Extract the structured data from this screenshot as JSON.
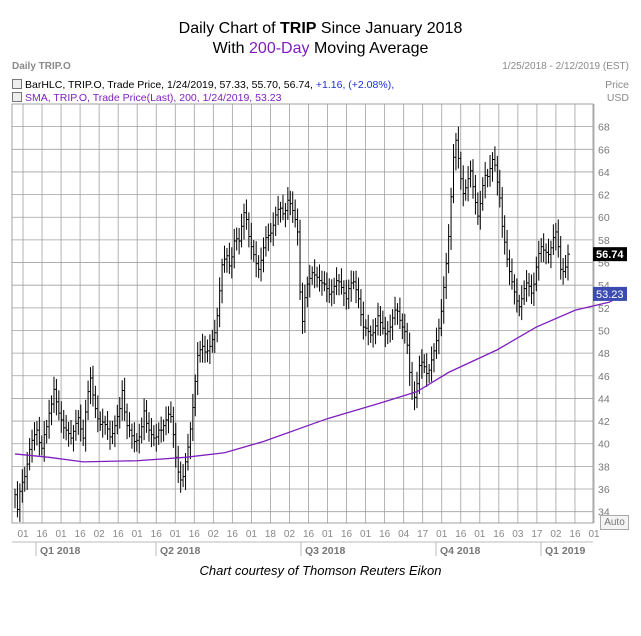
{
  "title": {
    "line1_pre": "Daily Chart of ",
    "line1_bold": "TRIP",
    "line1_post": " Since January 2018",
    "line2_pre": "With ",
    "line2_highlight": "200-Day",
    "line2_post": " Moving Average"
  },
  "header": {
    "left": "Daily TRIP.O",
    "right": "1/25/2018 - 2/12/2019 (EST)"
  },
  "legend": {
    "ohlc": {
      "label": "BarHLC, TRIP.O, Trade Price, 1/24/2019, 57.33, 55.70, 56.74,",
      "change": "+1.16, (+2.08%),"
    },
    "sma": {
      "label": "SMA, TRIP.O, Trade Price(Last), 200, 1/24/2019, 53.23"
    }
  },
  "price_header": {
    "line1": "Price",
    "line2": "USD"
  },
  "last_price_tag": "56.74",
  "sma_tag": "53.23",
  "auto_label": "Auto",
  "credit": "Chart courtesy of Thomson Reuters Eikon",
  "colors": {
    "grid": "#a0a0a0",
    "bars": "#000000",
    "sma": "#7f1fbf",
    "title_highlight": "#7f1fbf",
    "change": "#1b2fd6",
    "sma_tag_bg": "#3b4bb0"
  },
  "chart_data": {
    "type": "line",
    "ylim": [
      33,
      70
    ],
    "y_ticks": [
      34,
      36,
      38,
      40,
      42,
      44,
      46,
      48,
      50,
      52,
      54,
      56,
      58,
      60,
      62,
      64,
      66,
      68
    ],
    "x_day_ticks": [
      "01",
      "16",
      "01",
      "16",
      "02",
      "16",
      "01",
      "16",
      "01",
      "16",
      "02",
      "16",
      "01",
      "18",
      "02",
      "16",
      "01",
      "16",
      "01",
      "16",
      "04",
      "17",
      "01",
      "16",
      "01",
      "16",
      "03",
      "17",
      "02",
      "16",
      "01"
    ],
    "quarters": [
      "Q1 2018",
      "Q2 2018",
      "Q3 2018",
      "Q4 2018",
      "Q1 2019"
    ],
    "series": [
      {
        "name": "BarHLC, TRIP.O",
        "style": "hlc_bars",
        "close": [
          35.5,
          34.2,
          35.8,
          36.6,
          37.1,
          38.2,
          39.5,
          40.3,
          40.8,
          41.2,
          40.1,
          39.6,
          40.8,
          41.5,
          42.7,
          43.5,
          44.8,
          43.7,
          42.7,
          42.1,
          41.4,
          41.2,
          40.9,
          40.5,
          41.1,
          41.8,
          42.3,
          41.3,
          40.5,
          42.8,
          44.6,
          45.8,
          44.3,
          43.1,
          42.2,
          41.7,
          41.9,
          41.7,
          41.3,
          40.6,
          40.9,
          41.6,
          42.4,
          43.1,
          44.7,
          42.8,
          41.6,
          41.2,
          40.7,
          40.2,
          40.3,
          40.6,
          41.5,
          42.9,
          41.8,
          41.2,
          40.8,
          40.5,
          40.6,
          41.2,
          41.2,
          41.6,
          42.1,
          42.6,
          42.4,
          40.8,
          38.8,
          37.5,
          36.8,
          37.1,
          38.4,
          39.7,
          41.3,
          43.2,
          45.5,
          47.8,
          48.3,
          48.6,
          48.1,
          48.2,
          48.6,
          49.2,
          49.8,
          51.3,
          53.5,
          55.8,
          56.3,
          56.6,
          55.7,
          56.5,
          57.9,
          58.1,
          57.9,
          59.2,
          60.4,
          59.8,
          58.3,
          57.4,
          56.7,
          55.9,
          55.4,
          56.2,
          57.3,
          58.2,
          58.4,
          58.6,
          59.3,
          60.2,
          60.7,
          60.8,
          60.3,
          60.6,
          61.5,
          61.2,
          60.6,
          59.8,
          58.7,
          53.4,
          50.8,
          52.9,
          54.1,
          54.6,
          55.1,
          54.9,
          54.7,
          54.4,
          54.2,
          54.1,
          53.7,
          53.2,
          53.4,
          53.9,
          54.4,
          54.3,
          53.8,
          53.3,
          52.8,
          53.7,
          54.2,
          54.3,
          53.6,
          52.8,
          51.4,
          50.3,
          50.2,
          49.9,
          49.6,
          49.8,
          50.4,
          51.3,
          50.7,
          50.2,
          49.7,
          49.9,
          50.3,
          51.1,
          51.8,
          51.7,
          50.9,
          50.3,
          49.9,
          48.7,
          46.3,
          44.5,
          44.1,
          45.3,
          46.9,
          47.2,
          46.8,
          46.2,
          46.5,
          47.4,
          48.2,
          49.1,
          50.2,
          51.7,
          53.8,
          55.9,
          58.3,
          61.8,
          65.3,
          66.8,
          65.2,
          63.4,
          62.1,
          62.6,
          63.4,
          64.1,
          62.7,
          61.3,
          60.1,
          61.2,
          62.8,
          63.7,
          63.6,
          64.3,
          65.1,
          64.6,
          63.1,
          61.7,
          59.2,
          57.8,
          56.3,
          55.2,
          54.3,
          53.4,
          52.6,
          52.1,
          52.8,
          53.7,
          54.2,
          53.9,
          53.3,
          54.1,
          55.6,
          56.8,
          57.4,
          57.1,
          56.9,
          56.7,
          57.3,
          58.2,
          58.7,
          57.4,
          55.4,
          55.2,
          55.6,
          56.74
        ],
        "bar_range": 1.5
      },
      {
        "name": "SMA 200",
        "points": [
          [
            0,
            39.1
          ],
          [
            14,
            38.8
          ],
          [
            28,
            38.4
          ],
          [
            50,
            38.5
          ],
          [
            70,
            38.8
          ],
          [
            86,
            39.2
          ],
          [
            102,
            40.2
          ],
          [
            128,
            42.2
          ],
          [
            150,
            43.6
          ],
          [
            165,
            44.6
          ],
          [
            178,
            46.3
          ],
          [
            198,
            48.3
          ],
          [
            214,
            50.3
          ],
          [
            230,
            51.8
          ],
          [
            244,
            52.5
          ],
          [
            250,
            53.23
          ]
        ]
      }
    ]
  }
}
